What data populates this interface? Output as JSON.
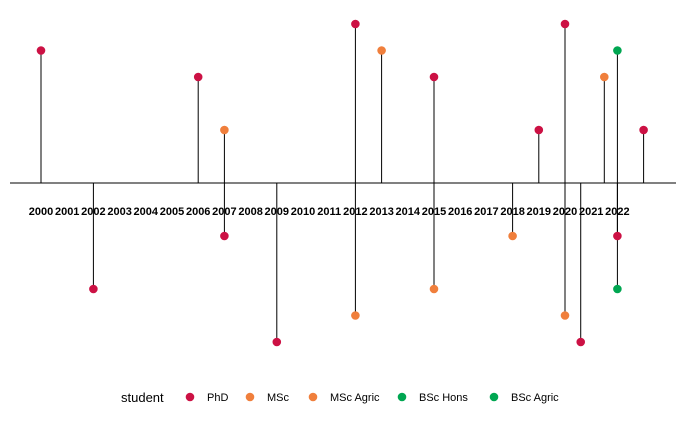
{
  "chart_data": {
    "type": "lollipop-timeline",
    "title": "",
    "xlabel": "",
    "ylabel": "",
    "grid": false,
    "x_ticks": [
      "2000",
      "2001",
      "2002",
      "2003",
      "2004",
      "2005",
      "2006",
      "2007",
      "2008",
      "2009",
      "2010",
      "2011",
      "2012",
      "2013",
      "2014",
      "2015",
      "2016",
      "2017",
      "2018",
      "2019",
      "2020",
      "2021",
      "2022"
    ],
    "xlim": [
      2000,
      2023
    ],
    "ylim": [
      -3,
      3
    ],
    "legend": {
      "title": "student",
      "position": "bottom",
      "entries": [
        {
          "name": "PhD",
          "color": "#cc1144"
        },
        {
          "name": "MSc",
          "color": "#f07f3c"
        },
        {
          "name": "MSc Agric",
          "color": "#f07f3c"
        },
        {
          "name": "BSc Hons",
          "color": "#00a651"
        },
        {
          "name": "BSc Agric",
          "color": "#00a651"
        }
      ]
    },
    "points": [
      {
        "x": 2000.0,
        "y": 2.5,
        "series": "PhD"
      },
      {
        "x": 2002.0,
        "y": -2.0,
        "series": "PhD"
      },
      {
        "x": 2006.0,
        "y": 2.0,
        "series": "PhD"
      },
      {
        "x": 2007.0,
        "y": 1.0,
        "series": "MSc"
      },
      {
        "x": 2007.0,
        "y": -1.0,
        "series": "PhD"
      },
      {
        "x": 2009.0,
        "y": -3.0,
        "series": "PhD"
      },
      {
        "x": 2012.0,
        "y": 3.0,
        "series": "PhD"
      },
      {
        "x": 2012.0,
        "y": -2.5,
        "series": "MSc"
      },
      {
        "x": 2013.0,
        "y": 2.5,
        "series": "MSc"
      },
      {
        "x": 2015.0,
        "y": 2.0,
        "series": "PhD"
      },
      {
        "x": 2015.0,
        "y": -2.0,
        "series": "MSc"
      },
      {
        "x": 2018.0,
        "y": -1.0,
        "series": "MSc"
      },
      {
        "x": 2019.0,
        "y": 1.0,
        "series": "PhD"
      },
      {
        "x": 2020.0,
        "y": 3.0,
        "series": "PhD"
      },
      {
        "x": 2020.0,
        "y": -2.5,
        "series": "MSc"
      },
      {
        "x": 2020.6,
        "y": -3.0,
        "series": "PhD"
      },
      {
        "x": 2021.5,
        "y": 2.0,
        "series": "MSc"
      },
      {
        "x": 2022.0,
        "y": 2.5,
        "series": "BSc Hons"
      },
      {
        "x": 2022.0,
        "y": -1.0,
        "series": "PhD"
      },
      {
        "x": 2022.0,
        "y": -2.0,
        "series": "BSc Hons"
      },
      {
        "x": 2023.0,
        "y": 1.0,
        "series": "PhD"
      }
    ]
  }
}
